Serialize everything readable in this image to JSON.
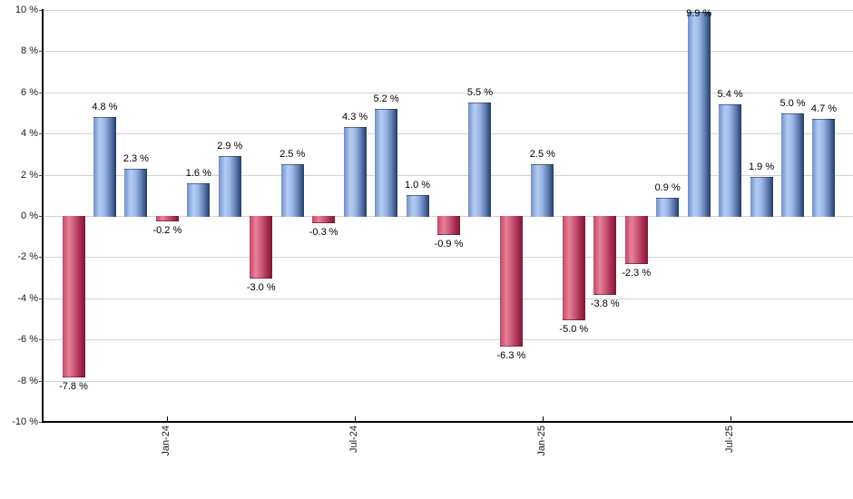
{
  "chart_data": {
    "type": "bar",
    "title": "",
    "xlabel": "",
    "ylabel": "",
    "ylim": [
      -10,
      10
    ],
    "y_grid_step": 2,
    "grid": true,
    "legend": false,
    "values": [
      -7.8,
      4.8,
      2.3,
      -0.2,
      1.6,
      2.9,
      -3.0,
      2.5,
      -0.3,
      4.3,
      5.2,
      1.0,
      -0.9,
      5.5,
      -6.3,
      2.5,
      -5.0,
      -3.8,
      -2.3,
      0.9,
      9.9,
      5.4,
      1.9,
      5.0,
      4.7
    ],
    "bar_labels": [
      "-7.8 %",
      "4.8 %",
      "2.3 %",
      "-0.2 %",
      "1.6 %",
      "2.9 %",
      "-3.0 %",
      "2.5 %",
      "-0.3 %",
      "4.3 %",
      "5.2 %",
      "1.0 %",
      "-0.9 %",
      "5.5 %",
      "-6.3 %",
      "2.5 %",
      "-5.0 %",
      "-3.8 %",
      "-2.3 %",
      "0.9 %",
      "9.9 %",
      "5.4 %",
      "1.9 %",
      "5.0 %",
      "4.7 %"
    ],
    "y_tick_labels": [
      "10 %",
      "8 %",
      "6 %",
      "4 %",
      "2 %",
      "0 %",
      "-2 %",
      "-4 %",
      "-6 %",
      "-8 %",
      "-10 %"
    ],
    "x_ticks": [
      {
        "bar_index": 3,
        "label": "Jan-24"
      },
      {
        "bar_index": 9,
        "label": "Jul-24"
      },
      {
        "bar_index": 15,
        "label": "Jan-25"
      },
      {
        "bar_index": 21,
        "label": "Jul-25"
      }
    ],
    "colors": {
      "positive_base": "#8fb0e0",
      "positive_gradient": [
        "#7390c6",
        "#b5cdf4",
        "#9ab6e6",
        "#5f7cb0",
        "#203c68"
      ],
      "negative_base": "#c94f6d",
      "negative_gradient": [
        "#c54764",
        "#e5839a",
        "#cf5c7b",
        "#a93054",
        "#7a1834"
      ],
      "gridline": "#d3d3d3",
      "axis": "#000000",
      "label_text": "#000000"
    }
  }
}
